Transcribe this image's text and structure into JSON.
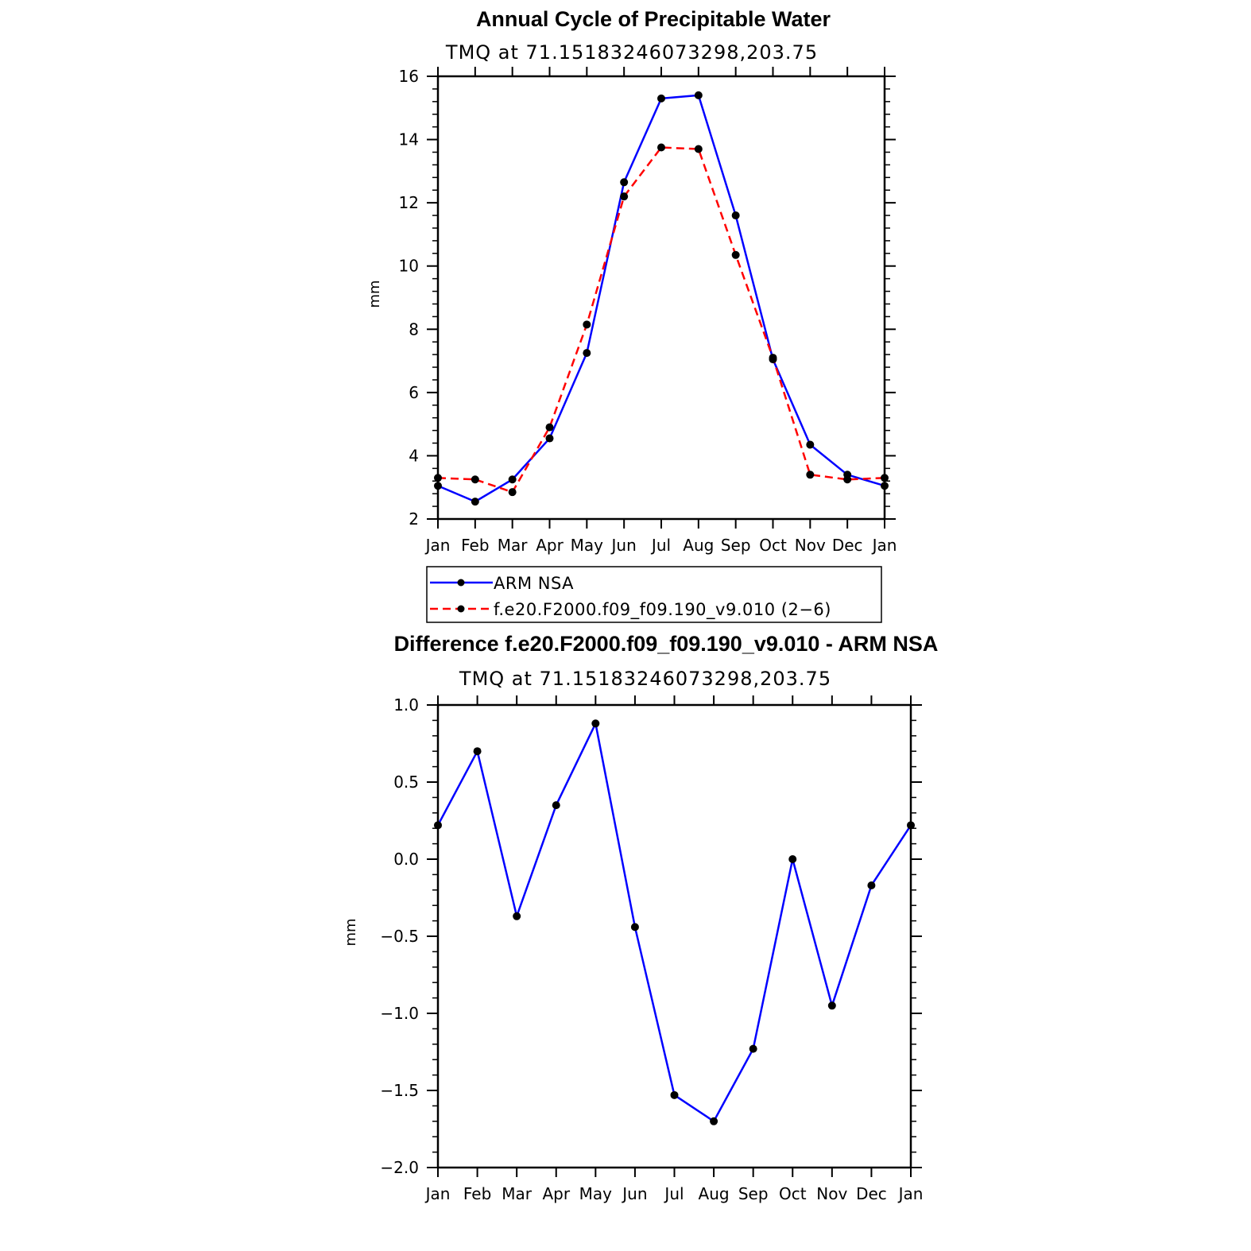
{
  "chart_data": [
    {
      "type": "line",
      "title": "Annual Cycle of Precipitable Water",
      "subtitle": "TMQ at 71.15183246073298,203.75",
      "xlabel": "",
      "ylabel": "mm",
      "categories": [
        "Jan",
        "Feb",
        "Mar",
        "Apr",
        "May",
        "Jun",
        "Jul",
        "Aug",
        "Sep",
        "Oct",
        "Nov",
        "Dec",
        "Jan"
      ],
      "ylim": [
        2,
        16
      ],
      "yticks": [
        "2",
        "4",
        "6",
        "8",
        "10",
        "12",
        "14",
        "16"
      ],
      "series": [
        {
          "name": "ARM NSA",
          "color": "#0000ff",
          "dash": "solid",
          "values": [
            3.05,
            2.55,
            3.25,
            4.55,
            7.25,
            12.65,
            15.3,
            15.4,
            11.6,
            7.05,
            4.35,
            3.4,
            3.05
          ]
        },
        {
          "name": "f.e20.F2000.f09_f09.190_v9.010 (2−6)",
          "color": "#ff0000",
          "dash": "dashed",
          "values": [
            3.3,
            3.25,
            2.85,
            4.9,
            8.15,
            12.2,
            13.75,
            13.7,
            10.35,
            7.1,
            3.4,
            3.25,
            3.3
          ]
        }
      ],
      "legend": "below"
    },
    {
      "type": "line",
      "title": "Difference f.e20.F2000.f09_f09.190_v9.010 - ARM NSA",
      "subtitle": "TMQ at 71.15183246073298,203.75",
      "xlabel": "",
      "ylabel": "mm",
      "categories": [
        "Jan",
        "Feb",
        "Mar",
        "Apr",
        "May",
        "Jun",
        "Jul",
        "Aug",
        "Sep",
        "Oct",
        "Nov",
        "Dec",
        "Jan"
      ],
      "ylim": [
        -2.0,
        1.0
      ],
      "yticks": [
        "−2.0",
        "−1.5",
        "−1.0",
        "−0.5",
        "0.0",
        "0.5",
        "1.0"
      ],
      "series": [
        {
          "name": "",
          "color": "#0000ff",
          "dash": "solid",
          "values": [
            0.22,
            0.7,
            -0.37,
            0.35,
            0.88,
            -0.44,
            -1.53,
            -1.7,
            -1.23,
            0.0,
            -0.95,
            -0.17,
            0.22
          ]
        }
      ]
    }
  ]
}
